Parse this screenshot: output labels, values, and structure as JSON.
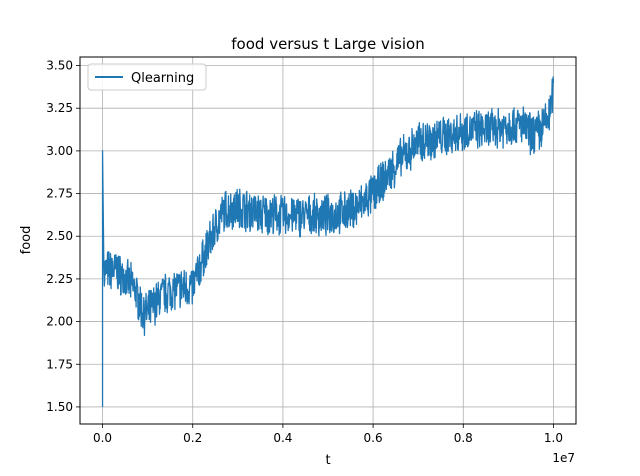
{
  "chart_data": {
    "type": "line",
    "title": "food versus t Large vision",
    "xlabel": "t",
    "ylabel": "food",
    "x_offset_text": "1e7",
    "xlim": [
      -0.05,
      1.05
    ],
    "ylim": [
      1.4,
      3.55
    ],
    "x_ticks": [
      0.0,
      0.2,
      0.4,
      0.6,
      0.8,
      1.0
    ],
    "x_tick_labels": [
      "0.0",
      "0.2",
      "0.4",
      "0.6",
      "0.8",
      "1.0"
    ],
    "y_ticks": [
      1.5,
      1.75,
      2.0,
      2.25,
      2.5,
      2.75,
      3.0,
      3.25,
      3.5
    ],
    "y_tick_labels": [
      "1.50",
      "1.75",
      "2.00",
      "2.25",
      "2.50",
      "2.75",
      "3.00",
      "3.25",
      "3.50"
    ],
    "grid": true,
    "legend_position": "top-left",
    "series": [
      {
        "name": "Qlearning",
        "color": "#1f77b4",
        "noise_amplitude": 0.11,
        "x": [
          0.0,
          0.002,
          0.004,
          0.01,
          0.03,
          0.05,
          0.07,
          0.09,
          0.1,
          0.13,
          0.15,
          0.18,
          0.2,
          0.22,
          0.25,
          0.27,
          0.3,
          0.35,
          0.4,
          0.45,
          0.5,
          0.55,
          0.58,
          0.6,
          0.63,
          0.66,
          0.7,
          0.75,
          0.8,
          0.85,
          0.9,
          0.93,
          0.95,
          0.97,
          0.99,
          1.0
        ],
        "y": [
          1.5,
          3.0,
          2.3,
          2.3,
          2.3,
          2.25,
          2.2,
          2.05,
          2.05,
          2.15,
          2.18,
          2.2,
          2.2,
          2.35,
          2.55,
          2.65,
          2.67,
          2.63,
          2.62,
          2.62,
          2.62,
          2.65,
          2.7,
          2.75,
          2.85,
          2.95,
          3.05,
          3.08,
          3.12,
          3.12,
          3.15,
          3.15,
          3.1,
          3.12,
          3.2,
          3.35
        ]
      }
    ]
  }
}
